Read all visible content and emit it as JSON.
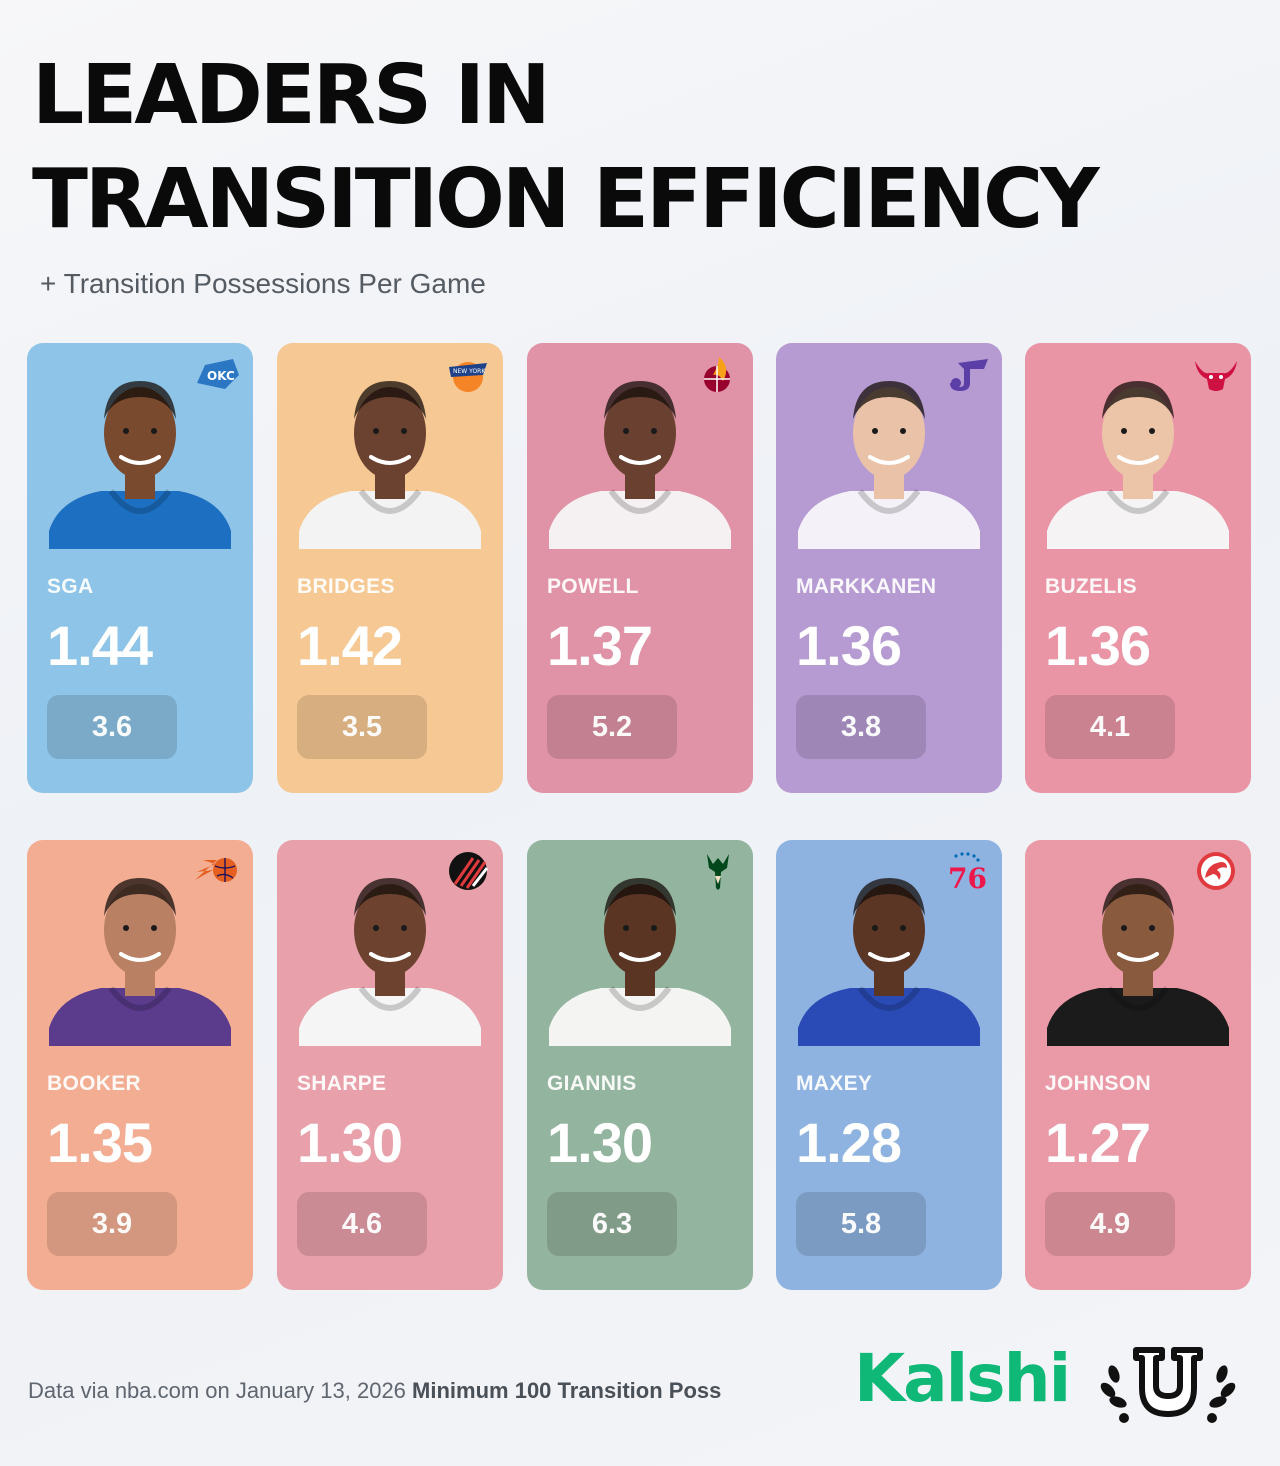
{
  "header": {
    "title_line1": "LEADERS IN",
    "title_line2": "TRANSITION EFFICIENCY",
    "subtitle": "+ Transition Possessions Per Game"
  },
  "players": [
    {
      "name": "SGA",
      "ppp": "1.44",
      "poss": "3.6",
      "team_logo": "thunder-logo",
      "color": "#8ec4e7",
      "jersey": "#1d6fc2",
      "skin": "#7a4a2e"
    },
    {
      "name": "BRIDGES",
      "ppp": "1.42",
      "poss": "3.5",
      "team_logo": "knicks-logo",
      "color": "#f6c894",
      "jersey": "#f3f3f3",
      "skin": "#6b4130"
    },
    {
      "name": "POWELL",
      "ppp": "1.37",
      "poss": "5.2",
      "team_logo": "heat-logo",
      "color": "#e093a6",
      "jersey": "#f5f0f1",
      "skin": "#6a4030"
    },
    {
      "name": "MARKKANEN",
      "ppp": "1.36",
      "poss": "3.8",
      "team_logo": "jazz-logo",
      "color": "#b69bd2",
      "jersey": "#f4f2f8",
      "skin": "#e9c2a7"
    },
    {
      "name": "BUZELIS",
      "ppp": "1.36",
      "poss": "4.1",
      "team_logo": "bulls-logo",
      "color": "#e995a6",
      "jersey": "#f5f3f3",
      "skin": "#ecc4a8"
    },
    {
      "name": "BOOKER",
      "ppp": "1.35",
      "poss": "3.9",
      "team_logo": "suns-logo",
      "color": "#f3ad92",
      "jersey": "#5a3b8c",
      "skin": "#b98063"
    },
    {
      "name": "SHARPE",
      "ppp": "1.30",
      "poss": "4.6",
      "team_logo": "blazers-logo",
      "color": "#e8a0aa",
      "jersey": "#f5f5f5",
      "skin": "#6d4330"
    },
    {
      "name": "GIANNIS",
      "ppp": "1.30",
      "poss": "6.3",
      "team_logo": "bucks-logo",
      "color": "#93b49e",
      "jersey": "#f4f4f2",
      "skin": "#5a3524"
    },
    {
      "name": "MAXEY",
      "ppp": "1.28",
      "poss": "5.8",
      "team_logo": "sixers-logo",
      "color": "#8fb3e0",
      "jersey": "#2a4bb5",
      "skin": "#5b3625"
    },
    {
      "name": "JOHNSON",
      "ppp": "1.27",
      "poss": "4.9",
      "team_logo": "hawks-logo",
      "color": "#ea9aa6",
      "jersey": "#1b1b1b",
      "skin": "#8a5a3e"
    }
  ],
  "logo_text": {
    "okc": "OKC",
    "knicks": "NEW YORK",
    "sixers": "76"
  },
  "footer": {
    "source": "Data via nba.com on January 13, 2026",
    "note": "Minimum 100 Transition Poss",
    "brand": "Kalshi"
  }
}
